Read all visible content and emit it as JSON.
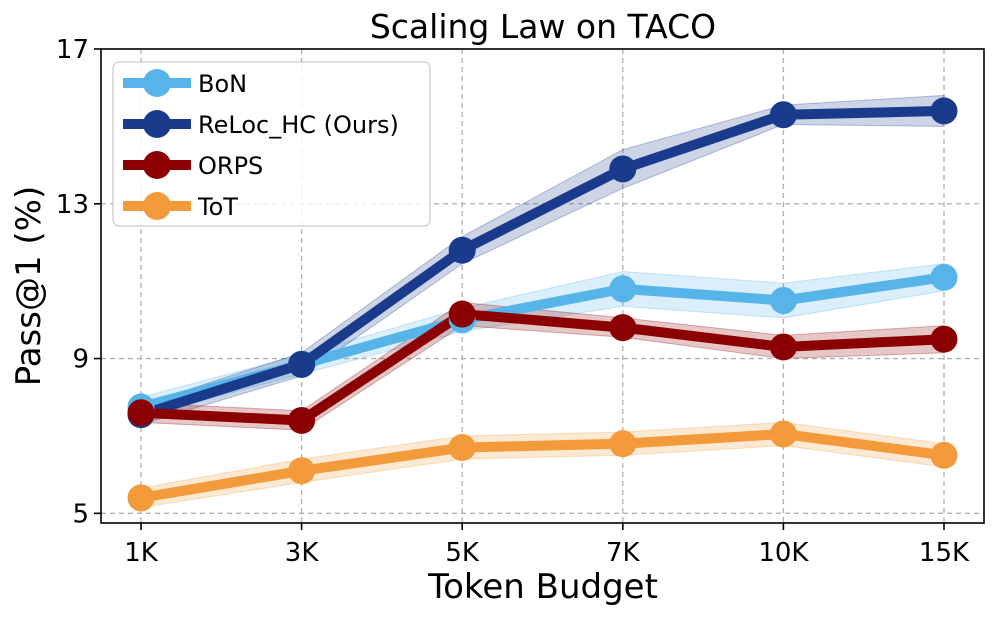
{
  "chart_data": {
    "type": "line",
    "title": "Scaling Law on TACO",
    "xlabel": "Token Budget",
    "ylabel": "Pass@1 (%)",
    "categories": [
      "1K",
      "3K",
      "5K",
      "7K",
      "10K",
      "15K"
    ],
    "ylim": [
      4.75,
      17
    ],
    "yticks": [
      5,
      9,
      13,
      17
    ],
    "grid": true,
    "legend_position": "top-left",
    "series": [
      {
        "name": "BoN",
        "color": "#56b4e9",
        "values": [
          7.75,
          8.85,
          10.0,
          10.8,
          10.5,
          11.1
        ],
        "band": [
          0.25,
          0.25,
          0.3,
          0.45,
          0.45,
          0.35
        ]
      },
      {
        "name": "ReLoc_HC (Ours)",
        "color": "#1a3a8c",
        "values": [
          7.55,
          8.85,
          11.8,
          13.9,
          15.3,
          15.4
        ],
        "band": [
          0.25,
          0.3,
          0.35,
          0.5,
          0.25,
          0.4
        ]
      },
      {
        "name": "ORPS",
        "color": "#8b0000",
        "values": [
          7.6,
          7.4,
          10.15,
          9.8,
          9.3,
          9.5
        ],
        "band": [
          0.25,
          0.25,
          0.3,
          0.25,
          0.3,
          0.35
        ]
      },
      {
        "name": "ToT",
        "color": "#f39a3b",
        "values": [
          5.4,
          6.1,
          6.7,
          6.8,
          7.05,
          6.5
        ],
        "band": [
          0.25,
          0.3,
          0.3,
          0.3,
          0.3,
          0.3
        ]
      }
    ]
  }
}
